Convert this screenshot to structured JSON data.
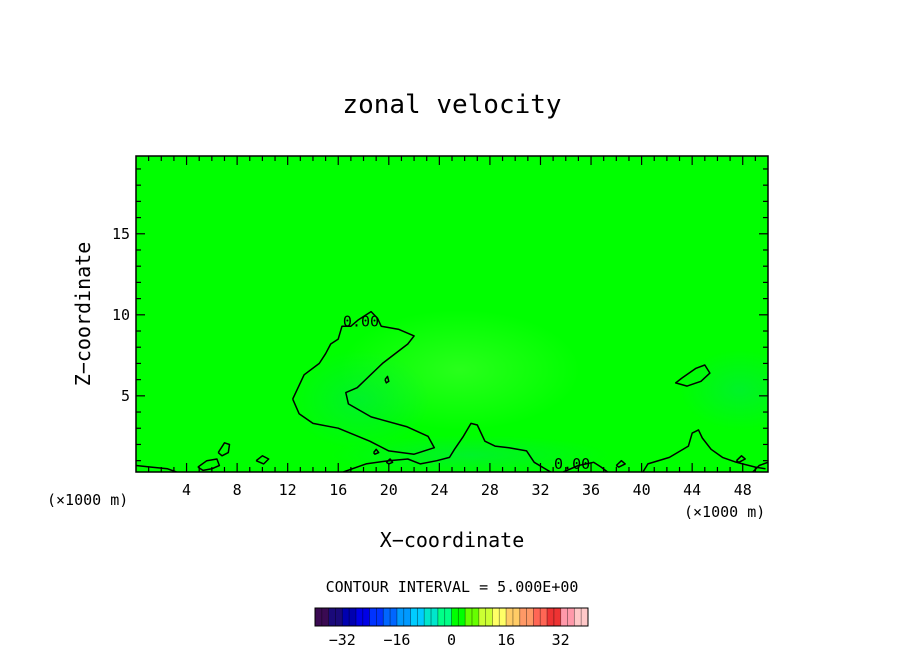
{
  "chart_data": {
    "type": "heatmap",
    "title": "zonal velocity",
    "xlabel": "X−coordinate",
    "ylabel": "Z−coordinate",
    "x_unit_left": "(×1000 m)",
    "x_unit_right": "(×1000 m)",
    "xlim": [
      0,
      50
    ],
    "ylim": [
      0.3,
      19.8
    ],
    "x_ticks": [
      4,
      8,
      12,
      16,
      20,
      24,
      28,
      32,
      36,
      40,
      44,
      48
    ],
    "y_ticks": [
      5,
      10,
      15
    ],
    "background_value": 0,
    "background_color": "#00ff00",
    "contour_labels": [
      {
        "text": "0.00",
        "x": 17.8,
        "y": 9.6
      },
      {
        "text": "0.00",
        "x": 34.5,
        "y": 0.8
      }
    ],
    "contours": [
      {
        "level": 0,
        "points": [
          [
            12.4,
            4.8
          ],
          [
            13.3,
            6.3
          ],
          [
            14.5,
            7.0
          ],
          [
            15.0,
            7.6
          ],
          [
            15.4,
            8.2
          ],
          [
            16.0,
            8.5
          ],
          [
            16.3,
            9.3
          ],
          [
            17.0,
            9.3
          ],
          [
            17.6,
            9.7
          ],
          [
            18.6,
            10.2
          ],
          [
            19.1,
            9.8
          ],
          [
            19.4,
            9.3
          ],
          [
            20.8,
            9.1
          ],
          [
            22.0,
            8.7
          ],
          [
            21.5,
            8.2
          ],
          [
            19.5,
            7.0
          ],
          [
            17.5,
            5.5
          ],
          [
            16.6,
            5.2
          ],
          [
            16.8,
            4.5
          ],
          [
            18.6,
            3.7
          ],
          [
            21.4,
            3.1
          ],
          [
            23.1,
            2.5
          ],
          [
            23.6,
            1.8
          ],
          [
            22.0,
            1.4
          ],
          [
            20.0,
            1.6
          ],
          [
            18.5,
            2.2
          ],
          [
            16.0,
            3.0
          ],
          [
            14.0,
            3.3
          ],
          [
            12.9,
            3.9
          ],
          [
            12.4,
            4.8
          ]
        ]
      },
      {
        "level": 0,
        "points": [
          [
            16.4,
            0.3
          ],
          [
            18.2,
            0.8
          ],
          [
            20.0,
            1.0
          ],
          [
            21.5,
            1.1
          ],
          [
            22.5,
            0.8
          ],
          [
            23.8,
            1.0
          ],
          [
            24.8,
            1.2
          ],
          [
            25.2,
            1.7
          ],
          [
            25.9,
            2.5
          ],
          [
            26.5,
            3.3
          ],
          [
            27.0,
            3.2
          ],
          [
            27.6,
            2.2
          ],
          [
            28.4,
            1.9
          ],
          [
            29.5,
            1.8
          ],
          [
            30.9,
            1.6
          ],
          [
            31.5,
            0.9
          ],
          [
            32.8,
            0.3
          ]
        ]
      },
      {
        "level": 0,
        "points": [
          [
            33.8,
            0.3
          ],
          [
            35.0,
            0.7
          ],
          [
            36.2,
            0.9
          ],
          [
            36.8,
            0.6
          ],
          [
            37.3,
            0.3
          ]
        ]
      },
      {
        "level": 0,
        "points": [
          [
            40.1,
            0.3
          ],
          [
            40.5,
            0.8
          ],
          [
            42.2,
            1.2
          ],
          [
            43.7,
            1.9
          ],
          [
            44.0,
            2.7
          ],
          [
            44.5,
            2.9
          ],
          [
            44.8,
            2.4
          ],
          [
            45.5,
            1.7
          ],
          [
            46.4,
            1.2
          ],
          [
            47.5,
            0.9
          ],
          [
            49.0,
            0.6
          ],
          [
            49.8,
            0.5
          ]
        ]
      },
      {
        "level": 0,
        "points": [
          [
            43.2,
            6.1
          ],
          [
            44.3,
            6.7
          ],
          [
            45.0,
            6.9
          ],
          [
            45.4,
            6.4
          ],
          [
            44.7,
            5.9
          ],
          [
            43.6,
            5.6
          ],
          [
            42.7,
            5.8
          ],
          [
            43.2,
            6.1
          ]
        ]
      },
      {
        "level": 0,
        "points": [
          [
            0.0,
            0.7
          ],
          [
            1.2,
            0.6
          ],
          [
            2.5,
            0.5
          ],
          [
            3.2,
            0.3
          ]
        ]
      },
      {
        "level": 0,
        "points": [
          [
            4.9,
            0.6
          ],
          [
            5.6,
            1.0
          ],
          [
            6.4,
            1.1
          ],
          [
            6.6,
            0.7
          ],
          [
            6.0,
            0.5
          ],
          [
            5.3,
            0.4
          ],
          [
            4.9,
            0.6
          ]
        ]
      },
      {
        "level": 0,
        "points": [
          [
            6.5,
            1.5
          ],
          [
            7.0,
            2.1
          ],
          [
            7.4,
            2.0
          ],
          [
            7.3,
            1.5
          ],
          [
            6.8,
            1.3
          ],
          [
            6.5,
            1.5
          ]
        ]
      },
      {
        "level": 0,
        "points": [
          [
            9.5,
            1.0
          ],
          [
            10.0,
            1.3
          ],
          [
            10.5,
            1.1
          ],
          [
            10.1,
            0.8
          ],
          [
            9.5,
            1.0
          ]
        ]
      },
      {
        "level": 0,
        "points": [
          [
            38.0,
            0.7
          ],
          [
            38.4,
            1.0
          ],
          [
            38.7,
            0.8
          ],
          [
            38.2,
            0.6
          ],
          [
            38.0,
            0.7
          ]
        ]
      },
      {
        "level": 0,
        "points": [
          [
            47.5,
            1.0
          ],
          [
            47.9,
            1.3
          ],
          [
            48.2,
            1.1
          ],
          [
            47.7,
            0.9
          ],
          [
            47.5,
            1.0
          ]
        ]
      },
      {
        "level": 0,
        "points": [
          [
            48.8,
            0.3
          ],
          [
            49.3,
            0.7
          ],
          [
            50.0,
            0.9
          ]
        ]
      },
      {
        "level": 0,
        "points": [
          [
            18.8,
            1.5
          ],
          [
            19.0,
            1.7
          ],
          [
            19.2,
            1.5
          ],
          [
            18.9,
            1.4
          ],
          [
            18.8,
            1.5
          ]
        ]
      },
      {
        "level": 0,
        "points": [
          [
            19.8,
            0.9
          ],
          [
            20.1,
            1.1
          ],
          [
            20.3,
            0.9
          ],
          [
            20.0,
            0.8
          ],
          [
            19.8,
            0.9
          ]
        ]
      },
      {
        "level": 0,
        "points": [
          [
            19.7,
            6.0
          ],
          [
            19.9,
            6.2
          ],
          [
            20.0,
            5.9
          ],
          [
            19.8,
            5.8
          ],
          [
            19.7,
            6.0
          ]
        ]
      }
    ],
    "contour_interval_label": "CONTOUR INTERVAL = 5.000E+00",
    "colorbar": {
      "min": -40,
      "max": 40,
      "ticks": [
        -32,
        -16,
        0,
        16,
        32
      ],
      "tick_labels": [
        "−32",
        "−16",
        "0",
        "16",
        "32"
      ],
      "colors": [
        "#3a0a52",
        "#1a0a7a",
        "#0000b0",
        "#0000e6",
        "#0033ff",
        "#0066ff",
        "#0099ff",
        "#00ccff",
        "#00e6cc",
        "#00ff88",
        "#00ff00",
        "#66ff00",
        "#ccff33",
        "#ffff66",
        "#ffcc66",
        "#ff9966",
        "#ff6655",
        "#ee3333",
        "#ff99aa",
        "#ffc8c8"
      ]
    }
  }
}
